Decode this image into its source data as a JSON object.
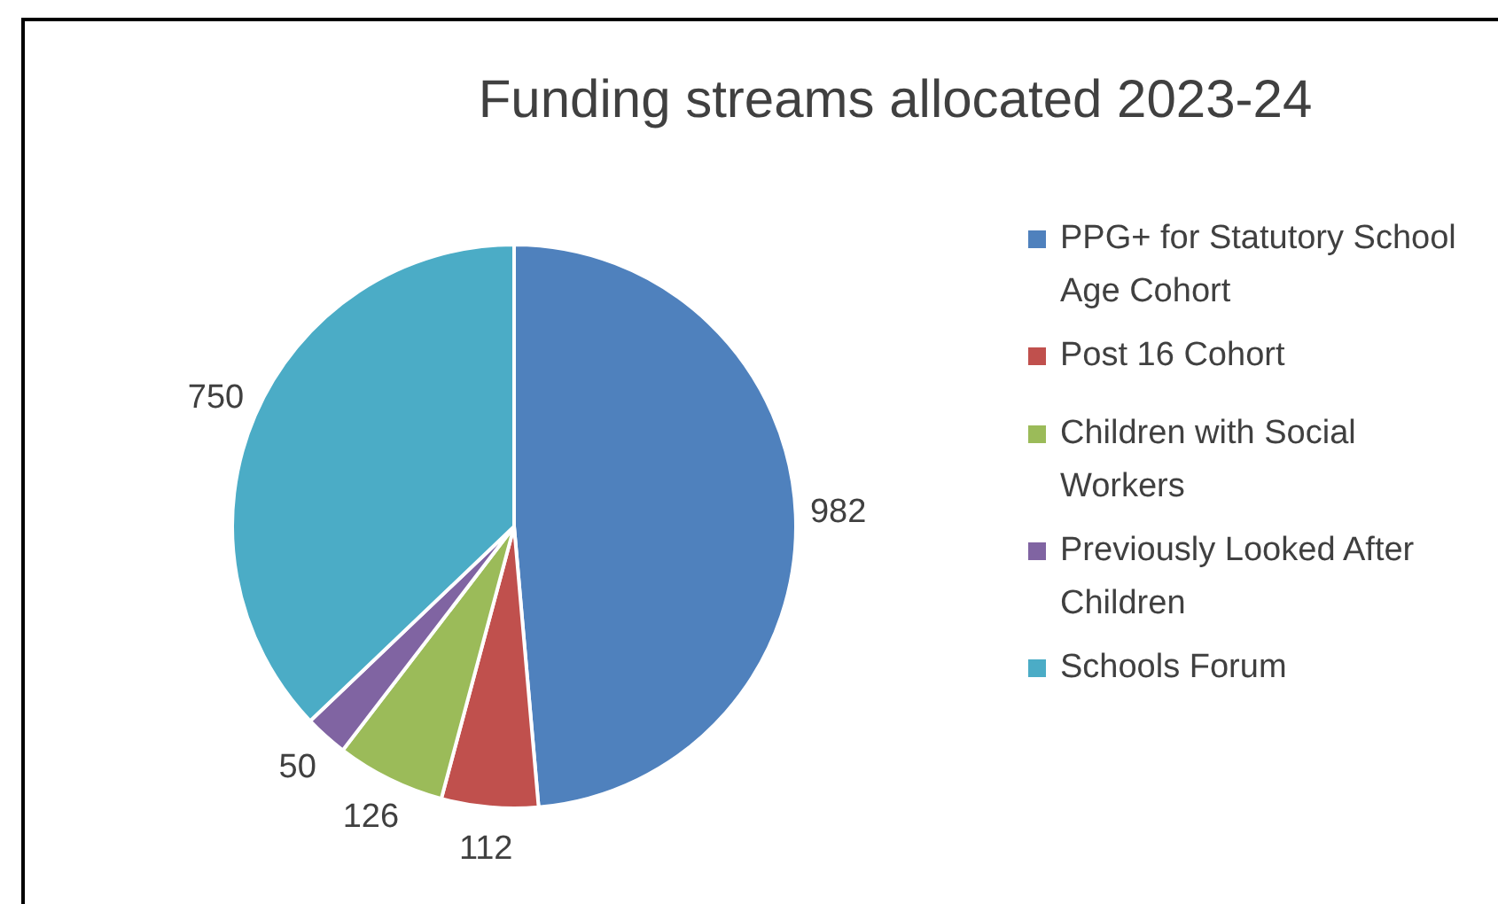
{
  "chart_data": {
    "type": "pie",
    "title": "Funding streams allocated 2023-24",
    "categories": [
      "PPG+ for Statutory School Age Cohort",
      "Post 16 Cohort",
      "Children with Social Workers",
      "Previously Looked After Children",
      "Schools Forum"
    ],
    "values": [
      982,
      112,
      126,
      50,
      750
    ],
    "colors": [
      "#4f81bd",
      "#c0504d",
      "#9bbb59",
      "#8064a2",
      "#4bacc6"
    ],
    "data_labels": true,
    "legend": "right"
  }
}
